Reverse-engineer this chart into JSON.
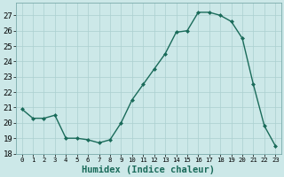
{
  "x": [
    0,
    1,
    2,
    3,
    4,
    5,
    6,
    7,
    8,
    9,
    10,
    11,
    12,
    13,
    14,
    15,
    16,
    17,
    18,
    19,
    20,
    21,
    22,
    23
  ],
  "y": [
    20.9,
    20.3,
    20.3,
    20.5,
    19.0,
    19.0,
    18.9,
    18.7,
    18.9,
    20.0,
    21.5,
    22.5,
    23.5,
    24.5,
    25.9,
    26.0,
    27.2,
    27.2,
    27.0,
    26.6,
    25.5,
    22.5,
    19.8,
    18.5
  ],
  "line_color": "#1a6b5a",
  "marker": "D",
  "marker_size": 2.0,
  "bg_color": "#cce8e8",
  "grid_color": "#aacfcf",
  "xlabel": "Humidex (Indice chaleur)",
  "xlim": [
    -0.5,
    23.5
  ],
  "ylim": [
    18,
    27.8
  ],
  "yticks": [
    18,
    19,
    20,
    21,
    22,
    23,
    24,
    25,
    26,
    27
  ],
  "xticks": [
    0,
    1,
    2,
    3,
    4,
    5,
    6,
    7,
    8,
    9,
    10,
    11,
    12,
    13,
    14,
    15,
    16,
    17,
    18,
    19,
    20,
    21,
    22,
    23
  ],
  "xlabel_fontsize": 7.5,
  "ytick_fontsize": 6.5,
  "xtick_fontsize": 5.2,
  "linewidth": 1.0
}
